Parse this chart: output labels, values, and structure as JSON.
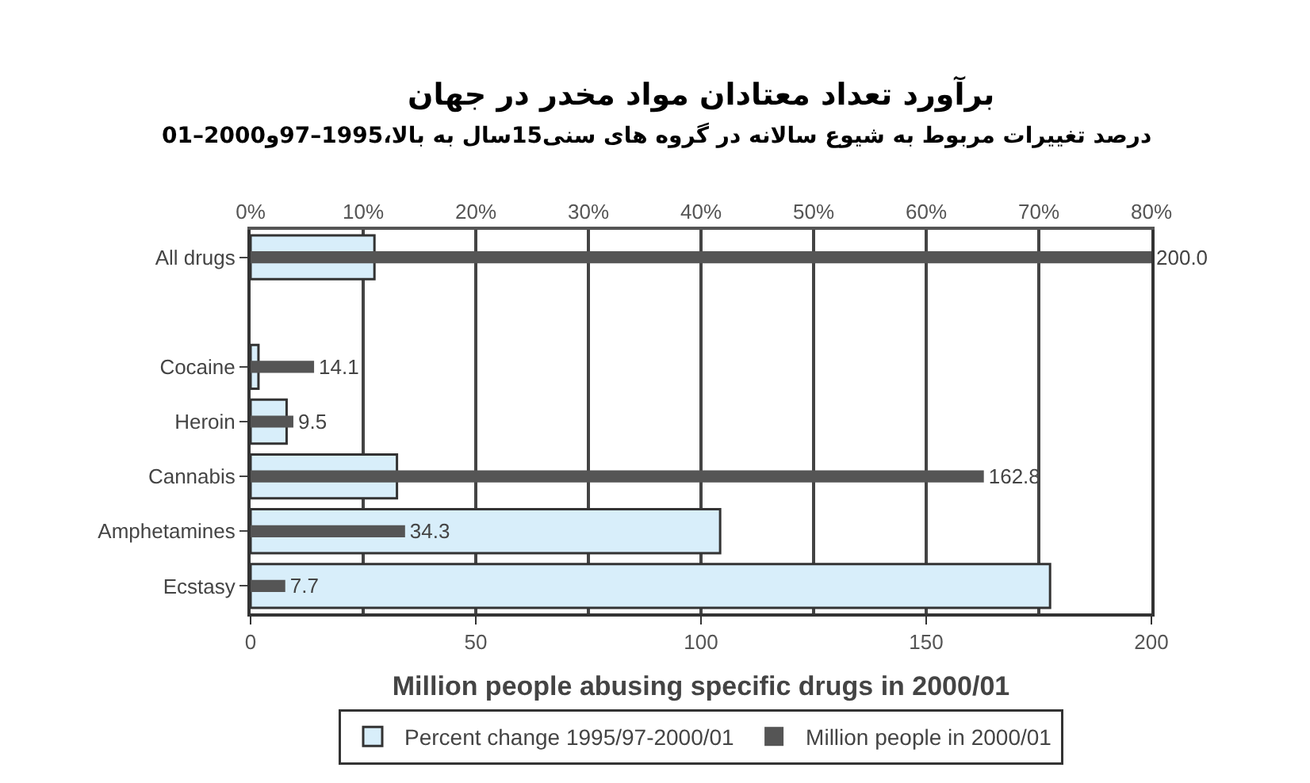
{
  "chart_data": {
    "type": "bar",
    "orientation": "horizontal",
    "title": "برآورد تعداد معتادان مواد مخدر در جهان",
    "subtitle": "درصد تغییرات مربوط به شیوع سالانه در گروه های سنی15سال به بالا،1995–97و2000–01",
    "xlabel": "Million people abusing specific drugs in 2000/01",
    "categories": [
      "All drugs",
      null,
      "Cocaine",
      "Heroin",
      "Cannabis",
      "Amphetamines",
      "Ecstasy"
    ],
    "series": [
      {
        "name": "Percent change 1995/97-2000/01",
        "color": "#d8eefa",
        "axis": "x2",
        "values": [
          11,
          null,
          0.7,
          3.2,
          13,
          41.7,
          71
        ]
      },
      {
        "name": "Million people in 2000/01",
        "color": "#555555",
        "values": [
          200.0,
          null,
          14.1,
          9.5,
          162.8,
          34.3,
          7.7
        ],
        "value_labels": [
          "200.0",
          null,
          "14.1",
          "9.5",
          "162.8",
          "34.3",
          "7.7"
        ]
      }
    ],
    "xlim": [
      0,
      200
    ],
    "xticks": [
      0,
      50,
      100,
      150,
      200
    ],
    "x2lim": [
      0,
      80
    ],
    "x2ticks": [
      {
        "value": 0,
        "label": "0%"
      },
      {
        "value": 10,
        "label": "10%"
      },
      {
        "value": 20,
        "label": "20%"
      },
      {
        "value": 30,
        "label": "30%"
      },
      {
        "value": 40,
        "label": "40%"
      },
      {
        "value": 50,
        "label": "50%"
      },
      {
        "value": 60,
        "label": "60%"
      },
      {
        "value": 70,
        "label": "70%"
      },
      {
        "value": 80,
        "label": "80%"
      }
    ],
    "grid": "x",
    "legend": "bottom"
  }
}
